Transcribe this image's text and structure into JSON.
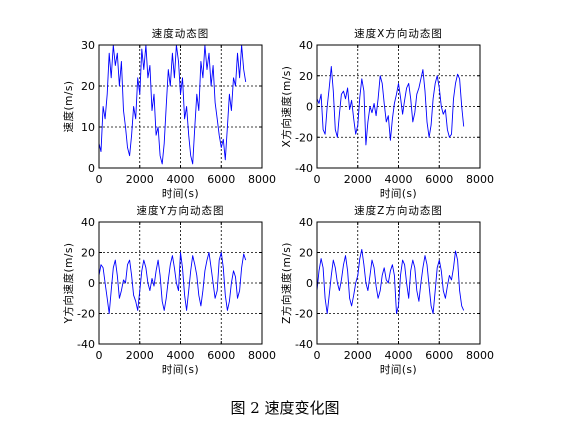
{
  "caption": "图 2 速度变化图",
  "chart_data": [
    {
      "type": "line",
      "title": "速度动态图",
      "xlabel": "时间(s)",
      "ylabel": "速度(m/s)",
      "xlim": [
        0,
        8000
      ],
      "ylim": [
        0,
        30
      ],
      "xticks": [
        0,
        2000,
        4000,
        6000,
        8000
      ],
      "yticks": [
        0,
        10,
        20,
        30
      ],
      "grid": true,
      "line_color": "#0000ff",
      "x": [
        0,
        100,
        200,
        300,
        400,
        500,
        600,
        700,
        800,
        900,
        1000,
        1100,
        1200,
        1300,
        1400,
        1500,
        1600,
        1700,
        1800,
        1900,
        2000,
        2100,
        2200,
        2300,
        2400,
        2500,
        2600,
        2700,
        2800,
        2900,
        3000,
        3100,
        3200,
        3300,
        3400,
        3500,
        3600,
        3700,
        3800,
        3900,
        4000,
        4100,
        4200,
        4300,
        4400,
        4500,
        4600,
        4700,
        4800,
        4900,
        5000,
        5100,
        5200,
        5300,
        5400,
        5500,
        5600,
        5700,
        5800,
        5900,
        6000,
        6100,
        6200,
        6300,
        6400,
        6500,
        6600,
        6700,
        6800,
        6900,
        7000,
        7100,
        7200
      ],
      "y": [
        6,
        4,
        15,
        12,
        18,
        28,
        22,
        30,
        25,
        28,
        20,
        26,
        14,
        10,
        5,
        3,
        8,
        15,
        12,
        22,
        18,
        29,
        24,
        30,
        22,
        25,
        14,
        18,
        8,
        10,
        3,
        1,
        6,
        15,
        24,
        20,
        28,
        22,
        30,
        26,
        18,
        22,
        12,
        15,
        8,
        3,
        1,
        10,
        18,
        14,
        26,
        22,
        30,
        24,
        28,
        20,
        25,
        16,
        12,
        8,
        5,
        7,
        2,
        10,
        18,
        14,
        22,
        20,
        28,
        22,
        30,
        24,
        21
      ]
    },
    {
      "type": "line",
      "title": "速度X方向动态图",
      "xlabel": "时间(s)",
      "ylabel": "X方向速度(m/s)",
      "xlim": [
        0,
        8000
      ],
      "ylim": [
        -40,
        40
      ],
      "xticks": [
        0,
        2000,
        4000,
        6000,
        8000
      ],
      "yticks": [
        -40,
        -20,
        0,
        20,
        40
      ],
      "grid": true,
      "line_color": "#0000ff",
      "x": [
        0,
        100,
        200,
        300,
        400,
        500,
        600,
        700,
        800,
        900,
        1000,
        1100,
        1200,
        1300,
        1400,
        1500,
        1600,
        1700,
        1800,
        1900,
        2000,
        2100,
        2200,
        2300,
        2400,
        2500,
        2600,
        2700,
        2800,
        2900,
        3000,
        3100,
        3200,
        3300,
        3400,
        3500,
        3600,
        3700,
        3800,
        3900,
        4000,
        4100,
        4200,
        4300,
        4400,
        4500,
        4600,
        4700,
        4800,
        4900,
        5000,
        5100,
        5200,
        5300,
        5400,
        5500,
        5600,
        5700,
        5800,
        5900,
        6000,
        6100,
        6200,
        6300,
        6400,
        6500,
        6600,
        6700,
        6800,
        6900,
        7000,
        7100,
        7200
      ],
      "y": [
        5,
        2,
        8,
        -15,
        -18,
        0,
        12,
        26,
        10,
        -15,
        -20,
        -5,
        8,
        10,
        5,
        12,
        -2,
        4,
        -8,
        -18,
        -12,
        6,
        18,
        10,
        -25,
        -10,
        0,
        -4,
        2,
        -6,
        5,
        20,
        15,
        2,
        -10,
        -6,
        -22,
        -8,
        2,
        8,
        15,
        6,
        -5,
        4,
        12,
        15,
        5,
        -10,
        -4,
        8,
        12,
        18,
        24,
        10,
        -10,
        -20,
        -12,
        5,
        15,
        20,
        12,
        0,
        -5,
        -2,
        -15,
        -20,
        -18,
        5,
        15,
        21,
        18,
        0,
        -13
      ]
    },
    {
      "type": "line",
      "title": "速度Y方向动态图",
      "xlabel": "时间(s)",
      "ylabel": "Y方向速度(m/s)",
      "xlim": [
        0,
        8000
      ],
      "ylim": [
        -40,
        40
      ],
      "xticks": [
        0,
        2000,
        4000,
        6000,
        8000
      ],
      "yticks": [
        -40,
        -20,
        0,
        20,
        40
      ],
      "grid": true,
      "line_color": "#0000ff",
      "x": [
        0,
        100,
        200,
        300,
        400,
        500,
        600,
        700,
        800,
        900,
        1000,
        1100,
        1200,
        1300,
        1400,
        1500,
        1600,
        1700,
        1800,
        1900,
        2000,
        2100,
        2200,
        2300,
        2400,
        2500,
        2600,
        2700,
        2800,
        2900,
        3000,
        3100,
        3200,
        3300,
        3400,
        3500,
        3600,
        3700,
        3800,
        3900,
        4000,
        4100,
        4200,
        4300,
        4400,
        4500,
        4600,
        4700,
        4800,
        4900,
        5000,
        5100,
        5200,
        5300,
        5400,
        5500,
        5600,
        5700,
        5800,
        5900,
        6000,
        6100,
        6200,
        6300,
        6400,
        6500,
        6600,
        6700,
        6800,
        6900,
        7000,
        7100,
        7200
      ],
      "y": [
        5,
        12,
        10,
        0,
        -10,
        -20,
        -5,
        10,
        15,
        5,
        -10,
        -5,
        2,
        0,
        12,
        15,
        5,
        -8,
        -12,
        -18,
        -5,
        8,
        15,
        10,
        0,
        -5,
        3,
        -2,
        8,
        15,
        5,
        -12,
        -18,
        -10,
        2,
        12,
        18,
        10,
        0,
        -5,
        20,
        10,
        -8,
        -18,
        -5,
        8,
        18,
        12,
        5,
        -8,
        -15,
        -5,
        8,
        15,
        20,
        10,
        0,
        -10,
        -5,
        15,
        20,
        10,
        -8,
        -18,
        -12,
        0,
        8,
        4,
        -10,
        -5,
        10,
        19,
        15
      ]
    },
    {
      "type": "line",
      "title": "速度Z方向动态图",
      "xlabel": "时间(s)",
      "ylabel": "Z方向速度(m/s)",
      "xlim": [
        0,
        8000
      ],
      "ylim": [
        -40,
        40
      ],
      "xticks": [
        0,
        2000,
        4000,
        6000,
        8000
      ],
      "yticks": [
        -40,
        -20,
        0,
        20,
        40
      ],
      "grid": true,
      "line_color": "#0000ff",
      "x": [
        0,
        100,
        200,
        300,
        400,
        500,
        600,
        700,
        800,
        900,
        1000,
        1100,
        1200,
        1300,
        1400,
        1500,
        1600,
        1700,
        1800,
        1900,
        2000,
        2100,
        2200,
        2300,
        2400,
        2500,
        2600,
        2700,
        2800,
        2900,
        3000,
        3100,
        3200,
        3300,
        3400,
        3500,
        3600,
        3700,
        3800,
        3900,
        4000,
        4100,
        4200,
        4300,
        4400,
        4500,
        4600,
        4700,
        4800,
        4900,
        5000,
        5100,
        5200,
        5300,
        5400,
        5500,
        5600,
        5700,
        5800,
        5900,
        6000,
        6100,
        6200,
        6300,
        6400,
        6500,
        6600,
        6700,
        6800,
        6900,
        7000,
        7100,
        7200
      ],
      "y": [
        -5,
        8,
        16,
        10,
        -10,
        -20,
        -8,
        5,
        15,
        10,
        0,
        -5,
        2,
        12,
        18,
        8,
        -10,
        -15,
        -8,
        0,
        5,
        16,
        22,
        12,
        0,
        -5,
        5,
        15,
        10,
        -2,
        -10,
        -5,
        5,
        10,
        2,
        0,
        8,
        12,
        5,
        -20,
        -15,
        5,
        15,
        12,
        0,
        -10,
        8,
        15,
        10,
        -5,
        -12,
        0,
        10,
        18,
        12,
        -2,
        -15,
        -20,
        -5,
        10,
        15,
        8,
        -5,
        -10,
        -2,
        5,
        2,
        10,
        21,
        15,
        -5,
        -15,
        -18
      ]
    }
  ]
}
